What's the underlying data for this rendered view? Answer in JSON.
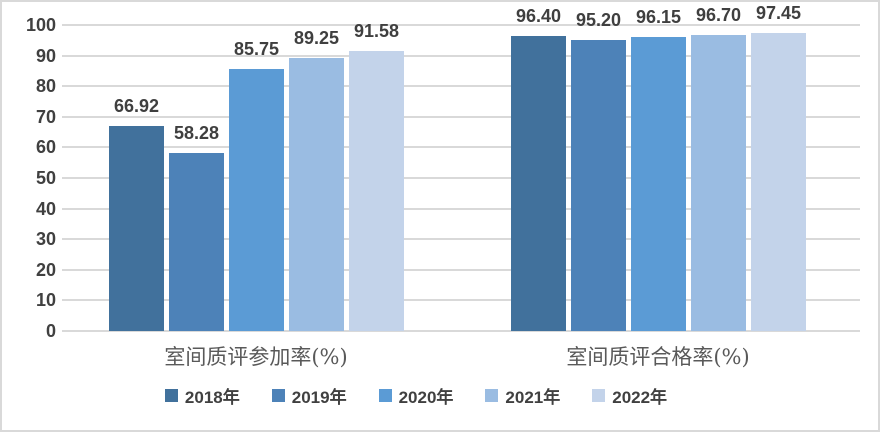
{
  "chart_data": {
    "type": "bar",
    "categories": [
      "室间质评参加率(%)",
      "室间质评合格率(%)"
    ],
    "series": [
      {
        "name": "2018年",
        "color": "#41719C",
        "values": [
          66.92,
          96.4
        ]
      },
      {
        "name": "2019年",
        "color": "#4D82B8",
        "values": [
          58.28,
          95.2
        ]
      },
      {
        "name": "2020年",
        "color": "#5B9BD5",
        "values": [
          85.75,
          96.15
        ]
      },
      {
        "name": "2021年",
        "color": "#9ABCE2",
        "values": [
          89.25,
          96.7
        ]
      },
      {
        "name": "2022年",
        "color": "#C3D3EA",
        "values": [
          91.58,
          97.45
        ]
      }
    ],
    "value_labels": [
      "66.92",
      "58.28",
      "85.75",
      "89.25",
      "91.58",
      "96.40",
      "95.20",
      "96.15",
      "96.70",
      "97.45"
    ],
    "ylim": [
      0,
      100
    ],
    "ytick_step": 10,
    "ytick_labels": [
      "0",
      "10",
      "20",
      "30",
      "40",
      "50",
      "60",
      "70",
      "80",
      "90",
      "100"
    ],
    "grid": true,
    "grid_color": "#D9D9D9",
    "text_color": "#404040",
    "category_label_color": "#595959",
    "legend_position": "bottom"
  }
}
